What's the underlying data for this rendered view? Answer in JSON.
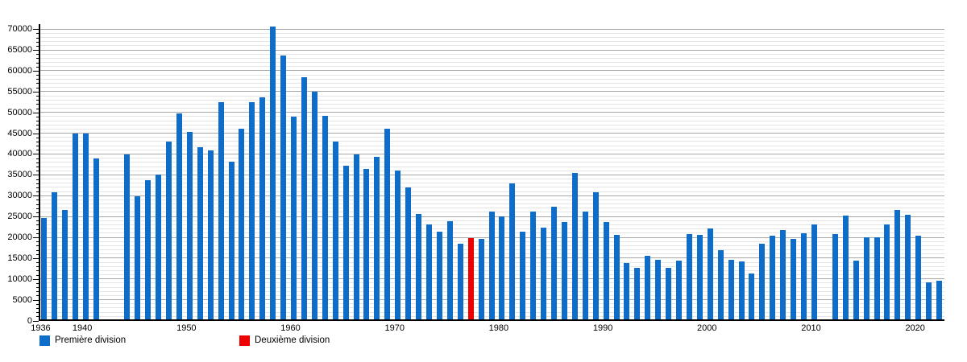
{
  "chart_data": {
    "type": "bar",
    "title": "",
    "xlabel": "",
    "ylabel": "",
    "ylim": [
      0,
      70000
    ],
    "y_major_step": 5000,
    "y_minor_step": 1000,
    "y_tick_labels": [
      0,
      5000,
      10000,
      15000,
      20000,
      25000,
      30000,
      35000,
      40000,
      45000,
      50000,
      55000,
      60000,
      65000,
      70000
    ],
    "x_tick_years": [
      1936,
      1940,
      1950,
      1960,
      1970,
      1980,
      1990,
      2000,
      2010,
      2020
    ],
    "year_range": [
      1936,
      2022
    ],
    "missing_years": [
      1942,
      1943,
      2011
    ],
    "grid": true,
    "legend_position": "bottom-left",
    "colors": {
      "premiere": "#0e6dc8",
      "deuxieme": "#ee0000",
      "grid_major": "#a7a7a7",
      "grid_minor": "#e4e4e4",
      "axis": "#000000"
    },
    "legend": [
      {
        "label": "Première division",
        "color_key": "premiere"
      },
      {
        "label": "Deuxième division",
        "color_key": "deuxieme"
      }
    ],
    "points": [
      {
        "year": 1936,
        "value": 24800,
        "div": 1
      },
      {
        "year": 1937,
        "value": 30900,
        "div": 1
      },
      {
        "year": 1938,
        "value": 26600,
        "div": 1
      },
      {
        "year": 1939,
        "value": 45000,
        "div": 1
      },
      {
        "year": 1940,
        "value": 45000,
        "div": 1
      },
      {
        "year": 1941,
        "value": 39000,
        "div": 1
      },
      {
        "year": 1944,
        "value": 40000,
        "div": 1
      },
      {
        "year": 1945,
        "value": 29900,
        "div": 1
      },
      {
        "year": 1946,
        "value": 33800,
        "div": 1
      },
      {
        "year": 1947,
        "value": 35200,
        "div": 1
      },
      {
        "year": 1948,
        "value": 43100,
        "div": 1
      },
      {
        "year": 1949,
        "value": 49900,
        "div": 1
      },
      {
        "year": 1950,
        "value": 45500,
        "div": 1
      },
      {
        "year": 1951,
        "value": 41800,
        "div": 1
      },
      {
        "year": 1952,
        "value": 40900,
        "div": 1
      },
      {
        "year": 1953,
        "value": 52600,
        "div": 1
      },
      {
        "year": 1954,
        "value": 38200,
        "div": 1
      },
      {
        "year": 1955,
        "value": 46100,
        "div": 1
      },
      {
        "year": 1956,
        "value": 52600,
        "div": 1
      },
      {
        "year": 1957,
        "value": 53800,
        "div": 1
      },
      {
        "year": 1958,
        "value": 70700,
        "div": 1
      },
      {
        "year": 1959,
        "value": 63800,
        "div": 1
      },
      {
        "year": 1960,
        "value": 49100,
        "div": 1
      },
      {
        "year": 1961,
        "value": 58500,
        "div": 1
      },
      {
        "year": 1962,
        "value": 55100,
        "div": 1
      },
      {
        "year": 1963,
        "value": 49300,
        "div": 1
      },
      {
        "year": 1964,
        "value": 43000,
        "div": 1
      },
      {
        "year": 1965,
        "value": 37300,
        "div": 1
      },
      {
        "year": 1966,
        "value": 40000,
        "div": 1
      },
      {
        "year": 1967,
        "value": 36500,
        "div": 1
      },
      {
        "year": 1968,
        "value": 39500,
        "div": 1
      },
      {
        "year": 1969,
        "value": 46200,
        "div": 1
      },
      {
        "year": 1970,
        "value": 36100,
        "div": 1
      },
      {
        "year": 1971,
        "value": 32000,
        "div": 1
      },
      {
        "year": 1972,
        "value": 25700,
        "div": 1
      },
      {
        "year": 1973,
        "value": 23100,
        "div": 1
      },
      {
        "year": 1974,
        "value": 21400,
        "div": 1
      },
      {
        "year": 1975,
        "value": 23900,
        "div": 1
      },
      {
        "year": 1976,
        "value": 18500,
        "div": 1
      },
      {
        "year": 1977,
        "value": 19900,
        "div": 2
      },
      {
        "year": 1978,
        "value": 19700,
        "div": 1
      },
      {
        "year": 1979,
        "value": 26300,
        "div": 1
      },
      {
        "year": 1980,
        "value": 25100,
        "div": 1
      },
      {
        "year": 1981,
        "value": 33100,
        "div": 1
      },
      {
        "year": 1982,
        "value": 21400,
        "div": 1
      },
      {
        "year": 1983,
        "value": 26200,
        "div": 1
      },
      {
        "year": 1984,
        "value": 22500,
        "div": 1
      },
      {
        "year": 1985,
        "value": 27400,
        "div": 1
      },
      {
        "year": 1986,
        "value": 23700,
        "div": 1
      },
      {
        "year": 1987,
        "value": 35500,
        "div": 1
      },
      {
        "year": 1988,
        "value": 26200,
        "div": 1
      },
      {
        "year": 1989,
        "value": 31000,
        "div": 1
      },
      {
        "year": 1990,
        "value": 23700,
        "div": 1
      },
      {
        "year": 1991,
        "value": 20700,
        "div": 1
      },
      {
        "year": 1992,
        "value": 13900,
        "div": 1
      },
      {
        "year": 1993,
        "value": 12700,
        "div": 1
      },
      {
        "year": 1994,
        "value": 15700,
        "div": 1
      },
      {
        "year": 1995,
        "value": 14700,
        "div": 1
      },
      {
        "year": 1996,
        "value": 12700,
        "div": 1
      },
      {
        "year": 1997,
        "value": 14400,
        "div": 1
      },
      {
        "year": 1998,
        "value": 20800,
        "div": 1
      },
      {
        "year": 1999,
        "value": 20600,
        "div": 1
      },
      {
        "year": 2000,
        "value": 22300,
        "div": 1
      },
      {
        "year": 2001,
        "value": 17000,
        "div": 1
      },
      {
        "year": 2002,
        "value": 14700,
        "div": 1
      },
      {
        "year": 2003,
        "value": 14300,
        "div": 1
      },
      {
        "year": 2004,
        "value": 11400,
        "div": 1
      },
      {
        "year": 2005,
        "value": 18600,
        "div": 1
      },
      {
        "year": 2006,
        "value": 20500,
        "div": 1
      },
      {
        "year": 2007,
        "value": 21900,
        "div": 1
      },
      {
        "year": 2008,
        "value": 19700,
        "div": 1
      },
      {
        "year": 2009,
        "value": 21000,
        "div": 1
      },
      {
        "year": 2010,
        "value": 23200,
        "div": 1
      },
      {
        "year": 2012,
        "value": 20800,
        "div": 1
      },
      {
        "year": 2013,
        "value": 25400,
        "div": 1
      },
      {
        "year": 2014,
        "value": 14400,
        "div": 1
      },
      {
        "year": 2015,
        "value": 20100,
        "div": 1
      },
      {
        "year": 2016,
        "value": 20100,
        "div": 1
      },
      {
        "year": 2017,
        "value": 23200,
        "div": 1
      },
      {
        "year": 2018,
        "value": 26600,
        "div": 1
      },
      {
        "year": 2019,
        "value": 25500,
        "div": 1
      },
      {
        "year": 2020,
        "value": 20400,
        "div": 1
      },
      {
        "year": 2021,
        "value": 9200,
        "div": 1
      },
      {
        "year": 2022,
        "value": 9700,
        "div": 1
      }
    ]
  }
}
